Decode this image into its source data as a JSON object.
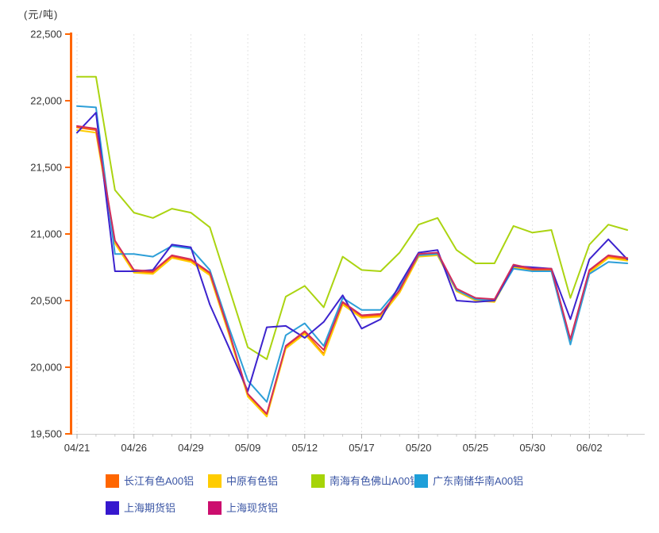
{
  "unit_label": "(元/吨)",
  "chart_data": {
    "type": "line",
    "title": "",
    "xlabel": "",
    "ylabel": "元/吨",
    "ylim": [
      19500,
      22500
    ],
    "y_ticks": [
      22500,
      22000,
      21500,
      21000,
      20500,
      20000,
      19500
    ],
    "grid": "vertical-dashed",
    "legend_position": "bottom",
    "axis_color": "#ff6600",
    "grid_color": "#e3e3e3",
    "tick_label_color": "#333333",
    "x": [
      "04/21",
      "04/22",
      "04/25",
      "04/26",
      "04/27",
      "04/28",
      "04/29",
      "05/05",
      "05/06",
      "05/09",
      "05/10",
      "05/11",
      "05/12",
      "05/13",
      "05/16",
      "05/17",
      "05/18",
      "05/19",
      "05/20",
      "05/23",
      "05/24",
      "05/25",
      "05/26",
      "05/27",
      "05/30",
      "05/31",
      "06/01",
      "06/02",
      "06/03",
      "06/06"
    ],
    "x_tick_indices": [
      0,
      3,
      6,
      9,
      12,
      15,
      18,
      21,
      24,
      27
    ],
    "x_tick_labels": [
      "04/21",
      "04/26",
      "04/29",
      "05/09",
      "05/12",
      "05/17",
      "05/20",
      "05/25",
      "05/30",
      "06/02"
    ],
    "series": [
      {
        "name": "长江有色A00铝",
        "color": "#ff6600",
        "swatch_color": "#ff6600",
        "values": [
          21800,
          21780,
          20940,
          20720,
          20710,
          20830,
          20800,
          20700,
          20260,
          19790,
          19640,
          20150,
          20260,
          20100,
          20480,
          20380,
          20390,
          20570,
          20840,
          20850,
          20580,
          20510,
          20500,
          20760,
          20730,
          20730,
          20200,
          20720,
          20830,
          20810
        ]
      },
      {
        "name": "中原有色铝",
        "color": "#ffcc00",
        "swatch_color": "#ffcc00",
        "values": [
          21780,
          21760,
          20930,
          20710,
          20700,
          20820,
          20790,
          20690,
          20250,
          19780,
          19630,
          20140,
          20250,
          20090,
          20470,
          20370,
          20380,
          20560,
          20830,
          20840,
          20570,
          20500,
          20490,
          20750,
          20720,
          20720,
          20190,
          20710,
          20820,
          20800
        ]
      },
      {
        "name": "南海有色佛山A00铝",
        "color": "#abd411",
        "swatch_color": "#a6d408",
        "values": [
          22180,
          22180,
          21330,
          21160,
          21120,
          21190,
          21160,
          21050,
          20600,
          20150,
          20060,
          20530,
          20610,
          20450,
          20830,
          20730,
          20720,
          20860,
          21070,
          21120,
          20880,
          20780,
          20780,
          21060,
          21010,
          21030,
          20520,
          20920,
          21070,
          21030
        ]
      },
      {
        "name": "广东南储华南A00铝",
        "color": "#2d9fd8",
        "swatch_color": "#1e9fd9",
        "values": [
          21960,
          21950,
          20850,
          20850,
          20830,
          20910,
          20890,
          20730,
          20300,
          19900,
          19740,
          20240,
          20330,
          20160,
          20520,
          20430,
          20430,
          20600,
          20840,
          20850,
          20580,
          20510,
          20500,
          20740,
          20720,
          20720,
          20170,
          20700,
          20790,
          20780
        ]
      },
      {
        "name": "上海期货铝",
        "color": "#3c23ce",
        "swatch_color": "#3618ce",
        "values": [
          21760,
          21910,
          20720,
          20720,
          20730,
          20920,
          20900,
          20470,
          20150,
          19820,
          20300,
          20310,
          20220,
          20340,
          20540,
          20290,
          20360,
          20620,
          20860,
          20880,
          20500,
          20490,
          20500,
          20760,
          20750,
          20740,
          20360,
          20810,
          20960,
          20810
        ]
      },
      {
        "name": "上海现货铝",
        "color": "#d22d5c",
        "swatch_color": "#cc0e6e",
        "values": [
          21810,
          21790,
          20950,
          20730,
          20720,
          20840,
          20810,
          20710,
          20270,
          19800,
          19650,
          20160,
          20270,
          20130,
          20490,
          20390,
          20400,
          20580,
          20850,
          20860,
          20590,
          20520,
          20510,
          20770,
          20740,
          20740,
          20210,
          20730,
          20840,
          20820
        ]
      }
    ]
  }
}
